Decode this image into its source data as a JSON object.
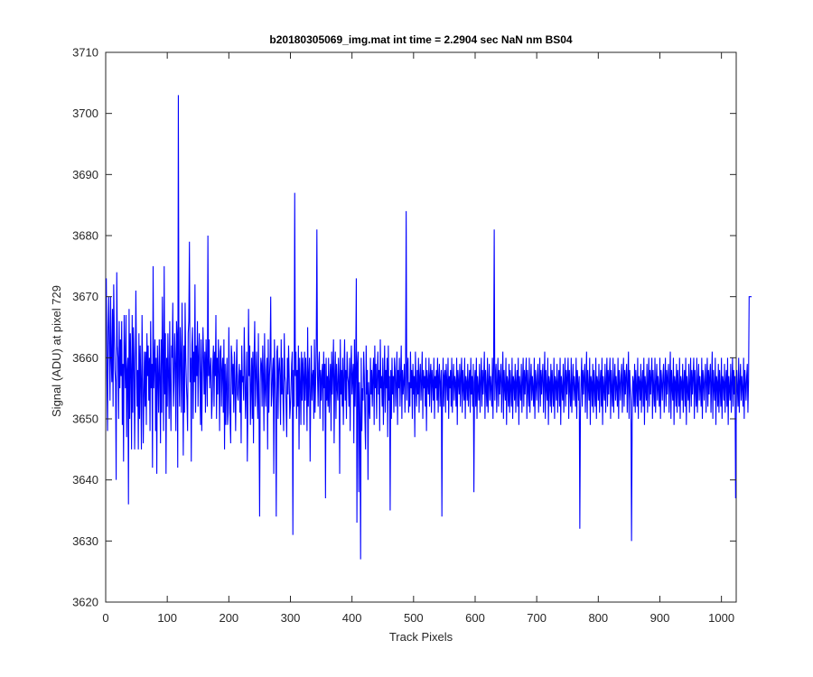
{
  "chart_data": {
    "type": "line",
    "title": "b20180305069_img.mat int time = 2.2904 sec  NaN nm BS04",
    "xlabel": "Track Pixels",
    "ylabel": "Signal (ADU) at pixel 729",
    "xlim": [
      0,
      1024
    ],
    "ylim": [
      3620,
      3710
    ],
    "x_ticks": [
      0,
      100,
      200,
      300,
      400,
      500,
      600,
      700,
      800,
      900,
      1000
    ],
    "y_ticks": [
      3620,
      3630,
      3640,
      3650,
      3660,
      3670,
      3680,
      3690,
      3700,
      3710
    ],
    "x_tick_labels": [
      "0",
      "100",
      "200",
      "300",
      "400",
      "500",
      "600",
      "700",
      "800",
      "900",
      "1000"
    ],
    "y_tick_labels": [
      "3620",
      "3630",
      "3640",
      "3650",
      "3660",
      "3670",
      "3680",
      "3690",
      "3700",
      "3710"
    ],
    "grid": false,
    "box": true,
    "line_color": "#0000ff",
    "series": [
      {
        "x_start": 1,
        "x_step": 1,
        "values": [
          3673,
          3657,
          3648,
          3665,
          3670,
          3662,
          3653,
          3670,
          3660,
          3656,
          3668,
          3652,
          3672,
          3664,
          3658,
          3656,
          3640,
          3674,
          3662,
          3660,
          3650,
          3666,
          3655,
          3663,
          3657,
          3666,
          3649,
          3659,
          3643,
          3667,
          3660,
          3655,
          3667,
          3647,
          3658,
          3660,
          3636,
          3668,
          3650,
          3664,
          3658,
          3645,
          3667,
          3651,
          3665,
          3660,
          3645,
          3656,
          3671,
          3660,
          3652,
          3658,
          3645,
          3664,
          3650,
          3662,
          3656,
          3645,
          3667,
          3658,
          3646,
          3654,
          3661,
          3652,
          3661,
          3649,
          3664,
          3657,
          3662,
          3653,
          3660,
          3648,
          3666,
          3655,
          3659,
          3642,
          3675,
          3655,
          3659,
          3663,
          3648,
          3660,
          3641,
          3662,
          3657,
          3651,
          3663,
          3657,
          3646,
          3663,
          3651,
          3670,
          3660,
          3648,
          3675,
          3654,
          3664,
          3641,
          3660,
          3652,
          3664,
          3657,
          3650,
          3666,
          3655,
          3648,
          3662,
          3660,
          3669,
          3652,
          3656,
          3664,
          3659,
          3648,
          3666,
          3663,
          3642,
          3703,
          3657,
          3652,
          3665,
          3660,
          3651,
          3669,
          3658,
          3644,
          3662,
          3651,
          3669,
          3660,
          3656,
          3653,
          3648,
          3664,
          3666,
          3679,
          3656,
          3660,
          3643,
          3662,
          3665,
          3650,
          3661,
          3656,
          3672,
          3651,
          3662,
          3657,
          3666,
          3652,
          3660,
          3664,
          3657,
          3649,
          3663,
          3648,
          3657,
          3665,
          3660,
          3654,
          3661,
          3651,
          3663,
          3658,
          3652,
          3680,
          3657,
          3663,
          3655,
          3658,
          3660,
          3650,
          3653,
          3659,
          3662,
          3652,
          3661,
          3657,
          3667,
          3650,
          3660,
          3654,
          3663,
          3658,
          3648,
          3661,
          3662,
          3652,
          3658,
          3660,
          3651,
          3663,
          3645,
          3659,
          3649,
          3656,
          3660,
          3649,
          3651,
          3665,
          3655,
          3650,
          3646,
          3662,
          3660,
          3654,
          3659,
          3651,
          3661,
          3656,
          3648,
          3657,
          3663,
          3654,
          3653,
          3657,
          3659,
          3651,
          3658,
          3646,
          3662,
          3656,
          3657,
          3653,
          3665,
          3658,
          3650,
          3655,
          3661,
          3643,
          3652,
          3668,
          3657,
          3662,
          3649,
          3655,
          3660,
          3650,
          3661,
          3646,
          3660,
          3666,
          3652,
          3657,
          3661,
          3654,
          3650,
          3664,
          3651,
          3634,
          3656,
          3660,
          3659,
          3652,
          3662,
          3657,
          3648,
          3664,
          3655,
          3652,
          3658,
          3660,
          3645,
          3663,
          3651,
          3657,
          3660,
          3670,
          3652,
          3654,
          3658,
          3660,
          3641,
          3663,
          3657,
          3653,
          3634,
          3661,
          3662,
          3650,
          3658,
          3660,
          3657,
          3649,
          3663,
          3654,
          3660,
          3653,
          3648,
          3664,
          3657,
          3656,
          3652,
          3647,
          3660,
          3654,
          3662,
          3657,
          3650,
          3652,
          3655,
          3659,
          3661,
          3631,
          3658,
          3652,
          3687,
          3657,
          3661,
          3650,
          3658,
          3652,
          3662,
          3645,
          3660,
          3656,
          3649,
          3661,
          3653,
          3660,
          3657,
          3649,
          3661,
          3653,
          3660,
          3656,
          3648,
          3665,
          3652,
          3657,
          3660,
          3643,
          3654,
          3662,
          3653,
          3657,
          3658,
          3650,
          3663,
          3651,
          3656,
          3662,
          3681,
          3657,
          3652,
          3659,
          3661,
          3650,
          3658,
          3653,
          3657,
          3659,
          3648,
          3661,
          3655,
          3659,
          3637,
          3660,
          3653,
          3657,
          3652,
          3660,
          3651,
          3656,
          3659,
          3648,
          3661,
          3654,
          3658,
          3663,
          3646,
          3657,
          3661,
          3650,
          3659,
          3655,
          3653,
          3660,
          3657,
          3641,
          3663,
          3654,
          3658,
          3652,
          3660,
          3649,
          3657,
          3663,
          3653,
          3658,
          3650,
          3661,
          3657,
          3656,
          3652,
          3660,
          3648,
          3658,
          3662,
          3654,
          3657,
          3659,
          3646,
          3663,
          3652,
          3658,
          3673,
          3633,
          3659,
          3661,
          3638,
          3656,
          3650,
          3627,
          3660,
          3648,
          3655,
          3653,
          3661,
          3657,
          3650,
          3645,
          3662,
          3654,
          3658,
          3640,
          3656,
          3652,
          3650,
          3660,
          3654,
          3658,
          3652,
          3657,
          3660,
          3649,
          3662,
          3655,
          3659,
          3650,
          3657,
          3661,
          3654,
          3658,
          3648,
          3663,
          3655,
          3657,
          3652,
          3660,
          3649,
          3656,
          3662,
          3651,
          3658,
          3655,
          3660,
          3647,
          3662,
          3653,
          3657,
          3635,
          3658,
          3650,
          3660,
          3654,
          3657,
          3651,
          3660,
          3658,
          3652,
          3656,
          3661,
          3649,
          3658,
          3655,
          3660,
          3652,
          3657,
          3662,
          3650,
          3658,
          3654,
          3656,
          3659,
          3651,
          3657,
          3684,
          3653,
          3658,
          3660,
          3651,
          3656,
          3652,
          3661,
          3655,
          3658,
          3650,
          3659,
          3654,
          3657,
          3647,
          3661,
          3656,
          3652,
          3658,
          3654,
          3660,
          3651,
          3657,
          3659,
          3653,
          3656,
          3661,
          3650,
          3658,
          3655,
          3657,
          3652,
          3660,
          3648,
          3658,
          3656,
          3654,
          3660,
          3652,
          3657,
          3659,
          3651,
          3658,
          3656,
          3653,
          3660,
          3650,
          3657,
          3655,
          3658,
          3653,
          3660,
          3651,
          3657,
          3659,
          3652,
          3656,
          3658,
          3634,
          3654,
          3660,
          3652,
          3657,
          3658,
          3651,
          3659,
          3656,
          3653,
          3660,
          3650,
          3657,
          3655,
          3658,
          3652,
          3660,
          3651,
          3656,
          3659,
          3653,
          3657,
          3656,
          3652,
          3660,
          3649,
          3658,
          3656,
          3654,
          3659,
          3652,
          3657,
          3660,
          3651,
          3658,
          3655,
          3653,
          3660,
          3650,
          3657,
          3656,
          3653,
          3659,
          3652,
          3656,
          3658,
          3651,
          3660,
          3654,
          3657,
          3652,
          3659,
          3638,
          3656,
          3658,
          3652,
          3660,
          3650,
          3657,
          3655,
          3653,
          3659,
          3651,
          3656,
          3660,
          3652,
          3658,
          3654,
          3657,
          3661,
          3650,
          3658,
          3655,
          3652,
          3660,
          3651,
          3656,
          3659,
          3653,
          3657,
          3655,
          3652,
          3660,
          3650,
          3658,
          3681,
          3653,
          3657,
          3659,
          3651,
          3656,
          3660,
          3652,
          3658,
          3654,
          3657,
          3659,
          3651,
          3656,
          3661,
          3650,
          3658,
          3655,
          3653,
          3660,
          3649,
          3657,
          3656,
          3652,
          3659,
          3651,
          3658,
          3655,
          3652,
          3660,
          3650,
          3657,
          3656,
          3653,
          3659,
          3651,
          3656,
          3658,
          3652,
          3660,
          3649,
          3657,
          3655,
          3653,
          3659,
          3651,
          3656,
          3660,
          3652,
          3658,
          3654,
          3657,
          3660,
          3650,
          3658,
          3655,
          3652,
          3660,
          3651,
          3656,
          3659,
          3653,
          3657,
          3655,
          3652,
          3660,
          3650,
          3658,
          3656,
          3653,
          3657,
          3659,
          3651,
          3656,
          3660,
          3652,
          3658,
          3654,
          3657,
          3659,
          3651,
          3656,
          3661,
          3650,
          3658,
          3655,
          3653,
          3660,
          3649,
          3657,
          3656,
          3652,
          3659,
          3651,
          3658,
          3655,
          3652,
          3660,
          3650,
          3657,
          3656,
          3653,
          3659,
          3651,
          3656,
          3658,
          3652,
          3660,
          3649,
          3657,
          3655,
          3653,
          3659,
          3651,
          3656,
          3660,
          3652,
          3658,
          3654,
          3657,
          3660,
          3650,
          3658,
          3655,
          3652,
          3660,
          3651,
          3656,
          3659,
          3653,
          3657,
          3655,
          3652,
          3660,
          3650,
          3658,
          3656,
          3653,
          3657,
          3632,
          3651,
          3656,
          3660,
          3652,
          3658,
          3654,
          3657,
          3659,
          3651,
          3656,
          3661,
          3650,
          3658,
          3655,
          3653,
          3660,
          3649,
          3657,
          3656,
          3652,
          3659,
          3651,
          3658,
          3655,
          3652,
          3660,
          3650,
          3657,
          3656,
          3653,
          3659,
          3651,
          3656,
          3658,
          3652,
          3660,
          3649,
          3657,
          3655,
          3653,
          3659,
          3651,
          3656,
          3660,
          3652,
          3658,
          3654,
          3657,
          3660,
          3650,
          3658,
          3655,
          3652,
          3660,
          3651,
          3656,
          3659,
          3653,
          3657,
          3655,
          3652,
          3660,
          3650,
          3658,
          3656,
          3653,
          3657,
          3659,
          3651,
          3656,
          3660,
          3652,
          3658,
          3654,
          3657,
          3659,
          3651,
          3656,
          3661,
          3650,
          3658,
          3655,
          3653,
          3630,
          3649,
          3657,
          3656,
          3652,
          3659,
          3651,
          3658,
          3655,
          3652,
          3660,
          3650,
          3657,
          3656,
          3653,
          3659,
          3651,
          3656,
          3658,
          3652,
          3660,
          3649,
          3657,
          3655,
          3653,
          3659,
          3651,
          3656,
          3660,
          3652,
          3658,
          3654,
          3657,
          3660,
          3650,
          3658,
          3655,
          3652,
          3660,
          3651,
          3656,
          3659,
          3653,
          3657,
          3655,
          3652,
          3660,
          3650,
          3658,
          3656,
          3653,
          3657,
          3659,
          3651,
          3656,
          3660,
          3652,
          3658,
          3654,
          3657,
          3659,
          3651,
          3656,
          3661,
          3650,
          3658,
          3655,
          3653,
          3660,
          3649,
          3657,
          3656,
          3652,
          3659,
          3651,
          3658,
          3655,
          3652,
          3660,
          3650,
          3657,
          3656,
          3653,
          3659,
          3651,
          3656,
          3658,
          3652,
          3660,
          3649,
          3657,
          3655,
          3653,
          3659,
          3651,
          3656,
          3660,
          3652,
          3658,
          3654,
          3657,
          3660,
          3650,
          3658,
          3655,
          3652,
          3660,
          3651,
          3656,
          3659,
          3653,
          3657,
          3655,
          3652,
          3660,
          3650,
          3658,
          3656,
          3653,
          3657,
          3659,
          3651,
          3656,
          3660,
          3652,
          3658,
          3654,
          3657,
          3659,
          3651,
          3656,
          3661,
          3650,
          3658,
          3655,
          3653,
          3660,
          3649,
          3657,
          3656,
          3652,
          3659,
          3651,
          3658,
          3655,
          3652,
          3660,
          3650,
          3657,
          3656,
          3653,
          3659,
          3651,
          3656,
          3658,
          3652,
          3660,
          3649,
          3657,
          3655,
          3653,
          3659,
          3651,
          3656,
          3660,
          3652,
          3658,
          3654,
          3657,
          3637,
          3650,
          3658,
          3655,
          3652,
          3660,
          3651,
          3656,
          3659,
          3653,
          3657,
          3655,
          3652,
          3660,
          3650,
          3658,
          3656,
          3653,
          3657,
          3659,
          3651,
          3656,
          3670,
          3670,
          3670,
          3670,
          3670
        ]
      }
    ]
  }
}
